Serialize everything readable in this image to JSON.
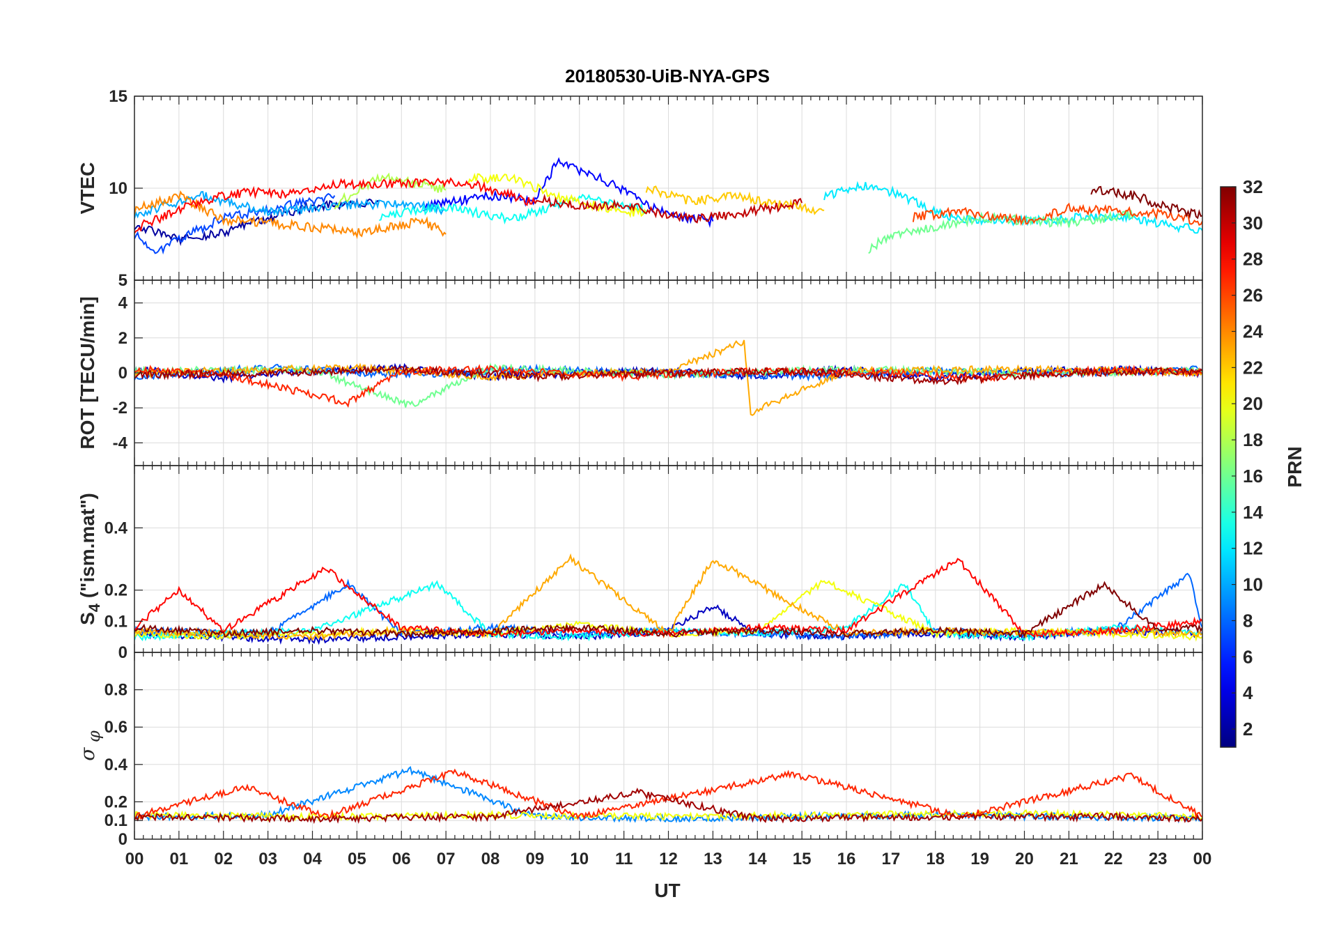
{
  "chart_data": {
    "type": "line",
    "title": "20180530-UiB-NYA-GPS",
    "xlabel": "UT",
    "x_range": [
      0,
      24
    ],
    "x_tick_labels": [
      "00",
      "01",
      "02",
      "03",
      "04",
      "05",
      "06",
      "07",
      "08",
      "09",
      "10",
      "11",
      "12",
      "13",
      "14",
      "15",
      "16",
      "17",
      "18",
      "19",
      "20",
      "21",
      "22",
      "23",
      "00"
    ],
    "grid": true,
    "colorbar": {
      "label": "PRN",
      "range": [
        1,
        32
      ],
      "colormap": "jet",
      "tick_labels": [
        "2",
        "4",
        "6",
        "8",
        "10",
        "12",
        "14",
        "16",
        "18",
        "20",
        "22",
        "24",
        "26",
        "28",
        "30",
        "32"
      ]
    },
    "panels": [
      {
        "id": "vtec",
        "ylabel": "VTEC",
        "ylim": [
          5,
          15
        ],
        "yticks": [
          5,
          10,
          15
        ],
        "ytick_labels": [
          "5",
          "10",
          "15"
        ],
        "series": [
          {
            "prn": 2,
            "x": [
              0.0,
              1.0,
              2.0,
              3.0,
              4.0,
              5.5
            ],
            "y": [
              8.0,
              7.2,
              7.6,
              8.4,
              9.0,
              9.3
            ]
          },
          {
            "prn": 5,
            "x": [
              6.5,
              8.0,
              9.0,
              9.5,
              10.5,
              12.0,
              13.0
            ],
            "y": [
              9.0,
              9.6,
              9.3,
              11.4,
              10.5,
              8.5,
              8.2
            ]
          },
          {
            "prn": 7,
            "x": [
              0.0,
              0.5,
              1.0,
              2.0,
              3.0,
              4.5
            ],
            "y": [
              7.5,
              6.5,
              7.2,
              8.4,
              8.8,
              9.6
            ]
          },
          {
            "prn": 10,
            "x": [
              0.0,
              1.5,
              3.0,
              4.5,
              6.0,
              7.0
            ],
            "y": [
              8.6,
              9.6,
              8.7,
              9.0,
              9.2,
              8.8
            ]
          },
          {
            "prn": 12,
            "x": [
              15.5,
              16.5,
              17.0,
              18.5,
              20.0,
              22.0,
              24.0
            ],
            "y": [
              9.6,
              10.2,
              9.8,
              8.3,
              8.2,
              8.5,
              7.7
            ]
          },
          {
            "prn": 13,
            "x": [
              5.5,
              7.0,
              8.5,
              10.0,
              11.5
            ],
            "y": [
              8.5,
              9.0,
              8.3,
              9.5,
              8.8
            ]
          },
          {
            "prn": 16,
            "x": [
              16.5,
              17.0,
              18.0,
              19.0,
              21.0,
              22.5
            ],
            "y": [
              6.7,
              7.4,
              7.9,
              8.4,
              8.1,
              8.6
            ]
          },
          {
            "prn": 18,
            "x": [
              4.5,
              5.5,
              6.5,
              7.0
            ],
            "y": [
              9.1,
              10.6,
              10.2,
              9.9
            ]
          },
          {
            "prn": 20,
            "x": [
              7.5,
              8.5,
              9.5,
              10.5,
              11.5
            ],
            "y": [
              10.5,
              10.6,
              9.5,
              9.0,
              8.6
            ]
          },
          {
            "prn": 22,
            "x": [
              11.5,
              12.5,
              13.5,
              14.5,
              15.5
            ],
            "y": [
              10.0,
              9.3,
              9.6,
              9.1,
              8.8
            ]
          },
          {
            "prn": 24,
            "x": [
              0.0,
              1.0,
              2.0,
              3.5,
              5.0,
              6.5,
              7.0
            ],
            "y": [
              8.8,
              9.6,
              8.3,
              8.0,
              7.6,
              8.2,
              7.5
            ]
          },
          {
            "prn": 26,
            "x": [
              17.5,
              18.5,
              20.0,
              21.0,
              23.0,
              24.0
            ],
            "y": [
              8.4,
              8.8,
              8.2,
              8.9,
              8.6,
              8.2
            ]
          },
          {
            "prn": 28,
            "x": [
              0.0,
              1.5,
              2.5,
              3.5,
              4.5,
              6.5,
              7.5,
              9.0
            ],
            "y": [
              7.8,
              9.3,
              9.8,
              9.7,
              10.2,
              10.3,
              10.3,
              9.2
            ]
          },
          {
            "prn": 30,
            "x": [
              9.0,
              10.0,
              11.0,
              12.5,
              13.5,
              15.0
            ],
            "y": [
              9.4,
              9.0,
              9.1,
              8.3,
              8.6,
              9.2
            ]
          },
          {
            "prn": 32,
            "x": [
              21.5,
              22.5,
              23.0,
              24.0
            ],
            "y": [
              9.9,
              9.6,
              9.1,
              8.5
            ]
          }
        ]
      },
      {
        "id": "rot",
        "ylabel": "ROT [TECU/min]",
        "ylim": [
          -5.3,
          5.3
        ],
        "yticks": [
          -4,
          -2,
          0,
          2,
          4
        ],
        "ytick_labels": [
          "-4",
          "-2",
          "0",
          "2",
          "4"
        ],
        "series": [
          {
            "prn": 3,
            "x": [
              0,
              2,
              4,
              6,
              8,
              10,
              12,
              14,
              16,
              18,
              20,
              22,
              24
            ],
            "y": [
              0.2,
              -0.3,
              0.1,
              0.3,
              -0.2,
              0,
              0.1,
              -0.2,
              0.2,
              -0.3,
              0.1,
              0.2,
              0.0
            ]
          },
          {
            "prn": 8,
            "x": [
              0,
              3,
              6,
              9,
              12,
              15,
              18,
              21,
              24
            ],
            "y": [
              -0.2,
              0.3,
              -0.1,
              0.2,
              0.0,
              -0.2,
              0.1,
              0.0,
              0.2
            ]
          },
          {
            "prn": 16,
            "x": [
              0,
              4,
              6.2,
              8,
              12,
              16,
              20,
              24
            ],
            "y": [
              0.1,
              0.2,
              -1.9,
              0.3,
              -0.1,
              0.2,
              0.0,
              0.1
            ]
          },
          {
            "prn": 23,
            "x": [
              0,
              5,
              8,
              12,
              13.7,
              13.85,
              16,
              20,
              24
            ],
            "y": [
              0.0,
              0.3,
              -0.2,
              0.1,
              1.8,
              -2.3,
              0.1,
              0.2,
              0.0
            ]
          },
          {
            "prn": 27,
            "x": [
              0,
              2,
              4.8,
              6,
              8,
              11,
              14,
              17,
              19,
              22,
              24
            ],
            "y": [
              0.2,
              -0.1,
              -1.7,
              0.1,
              0.2,
              -0.2,
              0.1,
              0.0,
              -0.3,
              0.2,
              0.0
            ]
          },
          {
            "prn": 31,
            "x": [
              0,
              3,
              6,
              9,
              12,
              15,
              18,
              21,
              24
            ],
            "y": [
              -0.1,
              0.0,
              0.2,
              -0.2,
              0.0,
              0.1,
              -0.5,
              0.0,
              0.1
            ]
          }
        ]
      },
      {
        "id": "s4",
        "ylabel": "S4 (\"ism.mat\")",
        "ylim": [
          0,
          0.6
        ],
        "yticks": [
          0,
          0.1,
          0.2,
          0.4
        ],
        "ytick_labels": [
          "0",
          "0.1",
          "0.2",
          "0.4"
        ],
        "series": [
          {
            "prn": 3,
            "x": [
              0,
              2,
              4,
              6,
              8,
              10,
              12,
              13,
              14,
              16,
              18,
              20,
              22,
              24
            ],
            "y": [
              0.06,
              0.05,
              0.04,
              0.05,
              0.06,
              0.05,
              0.07,
              0.15,
              0.06,
              0.05,
              0.06,
              0.05,
              0.07,
              0.06
            ]
          },
          {
            "prn": 8,
            "x": [
              0,
              3,
              4.8,
              6,
              8,
              10,
              12,
              14,
              16,
              18,
              20,
              22,
              23.7,
              24
            ],
            "y": [
              0.07,
              0.06,
              0.22,
              0.06,
              0.08,
              0.06,
              0.07,
              0.06,
              0.05,
              0.07,
              0.06,
              0.07,
              0.25,
              0.08
            ]
          },
          {
            "prn": 13,
            "x": [
              0,
              2,
              4,
              6.8,
              8,
              10,
              12,
              14,
              16,
              17.3,
              18,
              20,
              22,
              24
            ],
            "y": [
              0.05,
              0.06,
              0.07,
              0.22,
              0.06,
              0.05,
              0.07,
              0.06,
              0.08,
              0.22,
              0.06,
              0.05,
              0.08,
              0.06
            ]
          },
          {
            "prn": 20,
            "x": [
              0,
              2,
              4,
              6,
              8,
              10,
              12,
              14,
              15.5,
              18,
              20,
              22,
              24
            ],
            "y": [
              0.06,
              0.05,
              0.06,
              0.07,
              0.06,
              0.09,
              0.06,
              0.07,
              0.23,
              0.06,
              0.07,
              0.06,
              0.05
            ]
          },
          {
            "prn": 23,
            "x": [
              0,
              2,
              4,
              6,
              8,
              9.8,
              12,
              13,
              16,
              18,
              20,
              22,
              24
            ],
            "y": [
              0.07,
              0.06,
              0.05,
              0.07,
              0.06,
              0.3,
              0.06,
              0.3,
              0.06,
              0.07,
              0.06,
              0.07,
              0.06
            ]
          },
          {
            "prn": 28,
            "x": [
              0,
              1,
              2,
              4.3,
              6,
              8,
              10,
              12,
              14,
              16,
              18.5,
              20,
              22,
              24
            ],
            "y": [
              0.08,
              0.2,
              0.07,
              0.27,
              0.08,
              0.06,
              0.07,
              0.06,
              0.08,
              0.07,
              0.3,
              0.06,
              0.07,
              0.1
            ]
          },
          {
            "prn": 32,
            "x": [
              0,
              2,
              4,
              6,
              8,
              10,
              12,
              14,
              16,
              18,
              20,
              21.8,
              23,
              24
            ],
            "y": [
              0.08,
              0.06,
              0.07,
              0.06,
              0.07,
              0.08,
              0.06,
              0.07,
              0.06,
              0.07,
              0.06,
              0.22,
              0.07,
              0.08
            ]
          }
        ]
      },
      {
        "id": "sigma_phi",
        "ylabel": "σ φ",
        "ylim": [
          0,
          1
        ],
        "yticks": [
          0,
          0.1,
          0.2,
          0.4,
          0.6,
          0.8
        ],
        "ytick_labels": [
          "0",
          "0.1",
          "0.2",
          "0.4",
          "0.6",
          "0.8"
        ],
        "series": [
          {
            "prn": 9,
            "x": [
              0,
              3,
              6.2,
              9,
              12,
              15,
              18,
              21,
              24
            ],
            "y": [
              0.12,
              0.13,
              0.37,
              0.12,
              0.11,
              0.12,
              0.13,
              0.12,
              0.11
            ]
          },
          {
            "prn": 20,
            "x": [
              0,
              4,
              8,
              12,
              16,
              20,
              24
            ],
            "y": [
              0.13,
              0.12,
              0.13,
              0.12,
              0.13,
              0.14,
              0.12
            ]
          },
          {
            "prn": 27,
            "x": [
              0,
              2.5,
              4.3,
              7.2,
              10,
              14.8,
              18.6,
              22.4,
              24
            ],
            "y": [
              0.12,
              0.28,
              0.12,
              0.36,
              0.12,
              0.35,
              0.12,
              0.34,
              0.12
            ]
          },
          {
            "prn": 31,
            "x": [
              0,
              4,
              8,
              11.3,
              14,
              18,
              22,
              24
            ],
            "y": [
              0.12,
              0.11,
              0.12,
              0.25,
              0.11,
              0.12,
              0.12,
              0.11
            ]
          }
        ]
      }
    ]
  }
}
